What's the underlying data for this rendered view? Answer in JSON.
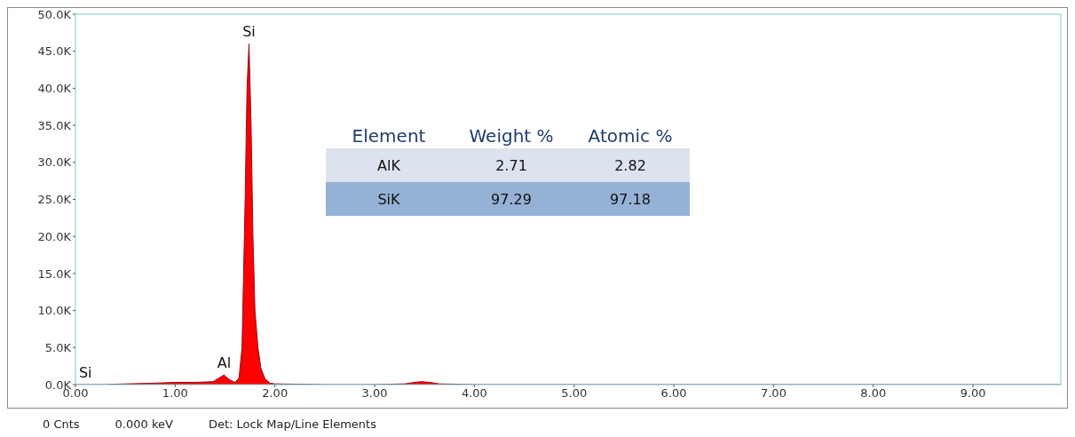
{
  "chart_data": {
    "type": "area",
    "x": [
      0,
      0.1,
      0.3,
      0.5,
      0.8,
      1.0,
      1.2,
      1.38,
      1.44,
      1.49,
      1.54,
      1.6,
      1.64,
      1.67,
      1.7,
      1.72,
      1.74,
      1.76,
      1.78,
      1.8,
      1.83,
      1.86,
      1.9,
      1.95,
      2.0,
      2.5,
      3.0,
      3.3,
      3.4,
      3.47,
      3.55,
      3.65,
      4.0,
      5.0,
      6.0,
      7.0,
      8.0,
      9.0,
      9.88
    ],
    "series": [
      {
        "color": "#ff0000",
        "values": [
          0,
          0,
          0,
          100,
          200,
          300,
          300,
          400,
          900,
          1300,
          700,
          300,
          900,
          5000,
          24000,
          40000,
          46000,
          36000,
          20000,
          10000,
          5000,
          2200,
          800,
          200,
          100,
          0,
          0,
          100,
          300,
          400,
          300,
          100,
          0,
          0,
          0,
          0,
          0,
          0,
          0
        ]
      }
    ],
    "xlim": [
      0,
      9.88
    ],
    "xticks": [
      {
        "value": 0,
        "label": "0.00"
      },
      {
        "value": 1,
        "label": "1.00"
      },
      {
        "value": 2,
        "label": "2.00"
      },
      {
        "value": 3,
        "label": "3.00"
      },
      {
        "value": 4,
        "label": "4.00"
      },
      {
        "value": 5,
        "label": "5.00"
      },
      {
        "value": 6,
        "label": "6.00"
      },
      {
        "value": 7,
        "label": "7.00"
      },
      {
        "value": 8,
        "label": "8.00"
      },
      {
        "value": 9,
        "label": "9.00"
      }
    ],
    "ylim": [
      0,
      50000
    ],
    "yticks": [
      {
        "value": 0,
        "label": "0.0K"
      },
      {
        "value": 5000,
        "label": "5.0K"
      },
      {
        "value": 10000,
        "label": "10.0K"
      },
      {
        "value": 15000,
        "label": "15.0K"
      },
      {
        "value": 20000,
        "label": "20.0K"
      },
      {
        "value": 25000,
        "label": "25.0K"
      },
      {
        "value": 30000,
        "label": "30.0K"
      },
      {
        "value": 35000,
        "label": "35.0K"
      },
      {
        "value": 40000,
        "label": "40.0K"
      },
      {
        "value": 45000,
        "label": "45.0K"
      },
      {
        "value": 50000,
        "label": "50.0K"
      }
    ],
    "annotations": [
      {
        "text": "Si",
        "x": 0.1,
        "y": 0
      },
      {
        "text": "Al",
        "x": 1.49,
        "y": 1300
      },
      {
        "text": "Si",
        "x": 1.74,
        "y": 46000
      },
      "Element",
      "Weight %",
      "Atomic %",
      "AlK",
      "2.71",
      "2.82",
      "SiK",
      "97.29",
      "97.18",
      "0 Cnts",
      "0.000 keV",
      "Det: Lock Map/Line Elements"
    ]
  }
}
